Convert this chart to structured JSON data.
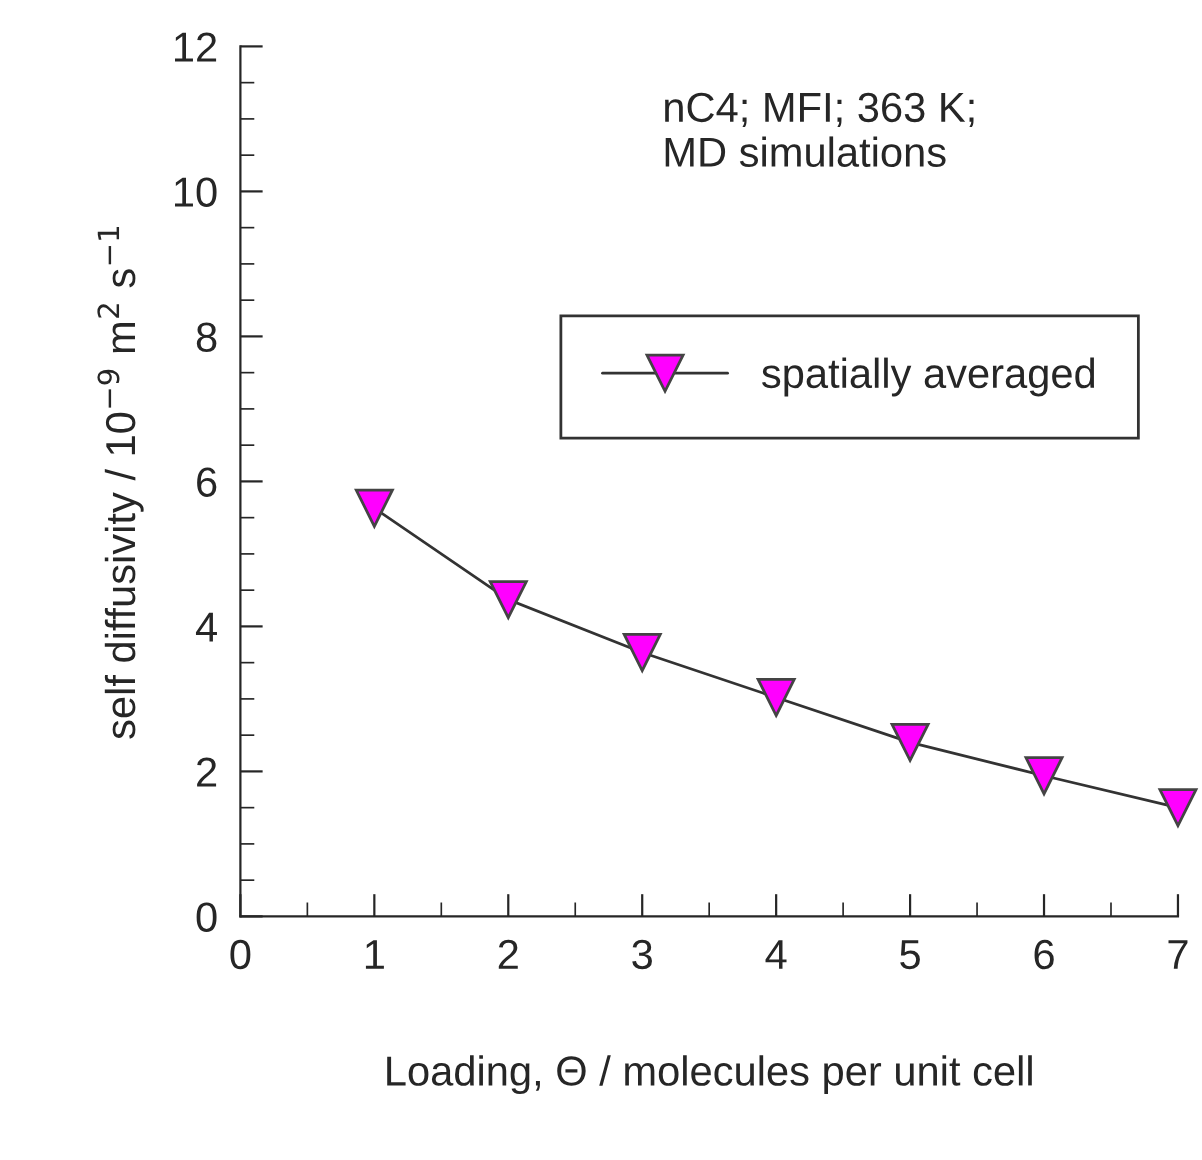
{
  "chart_data": {
    "type": "line",
    "xlabel": "Loading, Θ / molecules per unit cell",
    "ylabel": "self diffusivity / 10$^{−9}$ m$^{2}$ s$^{−1}$",
    "x": [
      1,
      2,
      3,
      4,
      5,
      6,
      7
    ],
    "series": [
      {
        "name": "spatially averaged",
        "color": "#ff00ff",
        "values": [
          5.63,
          4.37,
          3.64,
          3.02,
          2.4,
          1.94,
          1.5
        ]
      }
    ],
    "marker": "triangle",
    "line_style": "solid",
    "xlim": [
      0,
      7
    ],
    "xticks": [
      0,
      1,
      2,
      3,
      4,
      5,
      6,
      7
    ],
    "ylim": [
      0,
      12
    ],
    "yticks": [
      0,
      2,
      4,
      6,
      8,
      10,
      12
    ],
    "annotations": [
      "nC4; MFI; 363 K;\nMD simulations"
    ],
    "legend": "right",
    "grid": false
  }
}
